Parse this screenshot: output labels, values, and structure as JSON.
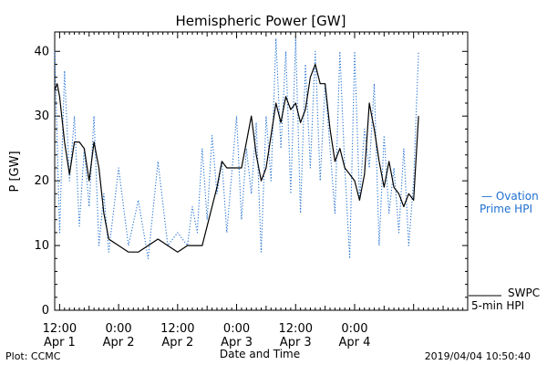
{
  "chart_data": {
    "type": "line",
    "title": "Hemispheric Power [GW]",
    "xlabel": "Date and Time",
    "ylabel": "P [GW]",
    "ylim": [
      0,
      43
    ],
    "xlim": [
      "2019-04-01 11:00",
      "2019-04-04 23:00"
    ],
    "grid": false,
    "legend_placement": "right",
    "y_ticks": [
      0,
      10,
      20,
      30,
      40
    ],
    "x_ticks": [
      {
        "time": "2019-04-01 12:00",
        "line1": "12:00",
        "line2": "Apr 1"
      },
      {
        "time": "2019-04-02 00:00",
        "line1": "0:00",
        "line2": "Apr 2"
      },
      {
        "time": "2019-04-02 12:00",
        "line1": "12:00",
        "line2": "Apr 2"
      },
      {
        "time": "2019-04-03 00:00",
        "line1": "0:00",
        "line2": "Apr 3"
      },
      {
        "time": "2019-04-03 12:00",
        "line1": "12:00",
        "line2": "Apr 3"
      },
      {
        "time": "2019-04-04 00:00",
        "line1": "0:00",
        "line2": "Apr 4"
      }
    ],
    "series": [
      {
        "name": "SWPC 5-min HPI",
        "color": "#000000",
        "style": "solid",
        "x": [
          "2019-04-01 11:00",
          "2019-04-01 11:30",
          "2019-04-01 12:00",
          "2019-04-01 13:00",
          "2019-04-01 14:00",
          "2019-04-01 15:00",
          "2019-04-01 16:00",
          "2019-04-01 17:00",
          "2019-04-01 18:00",
          "2019-04-01 19:00",
          "2019-04-01 20:00",
          "2019-04-01 21:00",
          "2019-04-01 22:00",
          "2019-04-02 00:00",
          "2019-04-02 02:00",
          "2019-04-02 04:00",
          "2019-04-02 06:00",
          "2019-04-02 08:00",
          "2019-04-02 10:00",
          "2019-04-02 12:00",
          "2019-04-02 14:00",
          "2019-04-02 15:00",
          "2019-04-02 16:00",
          "2019-04-02 17:00",
          "2019-04-02 18:00",
          "2019-04-02 19:00",
          "2019-04-02 20:00",
          "2019-04-02 21:00",
          "2019-04-02 22:00",
          "2019-04-03 00:00",
          "2019-04-03 01:00",
          "2019-04-03 02:00",
          "2019-04-03 03:00",
          "2019-04-03 04:00",
          "2019-04-03 05:00",
          "2019-04-03 06:00",
          "2019-04-03 07:00",
          "2019-04-03 08:00",
          "2019-04-03 09:00",
          "2019-04-03 10:00",
          "2019-04-03 11:00",
          "2019-04-03 12:00",
          "2019-04-03 13:00",
          "2019-04-03 14:00",
          "2019-04-03 15:00",
          "2019-04-03 16:00",
          "2019-04-03 17:00",
          "2019-04-03 18:00",
          "2019-04-03 19:00",
          "2019-04-03 20:00",
          "2019-04-03 21:00",
          "2019-04-03 22:00",
          "2019-04-03 23:00",
          "2019-04-04 00:00",
          "2019-04-04 01:00",
          "2019-04-04 02:00",
          "2019-04-04 03:00",
          "2019-04-04 04:00",
          "2019-04-04 05:00",
          "2019-04-04 06:00",
          "2019-04-04 07:00",
          "2019-04-04 08:00",
          "2019-04-04 09:00",
          "2019-04-04 10:00",
          "2019-04-04 11:00",
          "2019-04-04 12:00",
          "2019-04-04 13:00"
        ],
        "y": [
          34,
          35,
          33,
          26,
          21,
          26,
          26,
          25,
          20,
          26,
          22,
          15,
          11,
          10,
          9,
          9,
          10,
          11,
          10,
          9,
          10,
          10,
          10,
          10,
          13,
          16,
          19,
          23,
          22,
          22,
          22,
          26,
          30,
          24,
          20,
          22,
          27,
          32,
          29,
          33,
          31,
          32,
          29,
          31,
          36,
          38,
          35,
          35,
          28,
          23,
          25,
          22,
          21,
          20,
          17,
          21,
          32,
          28,
          23,
          19,
          23,
          19,
          18,
          16,
          18,
          17,
          30
        ]
      },
      {
        "name": "Ovation Prime HPI",
        "color": "#1f6fd1",
        "style": "dotted",
        "x": [
          "2019-04-01 11:00",
          "2019-04-01 12:00",
          "2019-04-01 13:00",
          "2019-04-01 14:00",
          "2019-04-01 15:00",
          "2019-04-01 16:00",
          "2019-04-01 17:00",
          "2019-04-01 18:00",
          "2019-04-01 19:00",
          "2019-04-01 20:00",
          "2019-04-01 21:00",
          "2019-04-01 22:00",
          "2019-04-02 00:00",
          "2019-04-02 02:00",
          "2019-04-02 04:00",
          "2019-04-02 06:00",
          "2019-04-02 08:00",
          "2019-04-02 10:00",
          "2019-04-02 12:00",
          "2019-04-02 14:00",
          "2019-04-02 15:00",
          "2019-04-02 16:00",
          "2019-04-02 17:00",
          "2019-04-02 18:00",
          "2019-04-02 19:00",
          "2019-04-02 20:00",
          "2019-04-02 21:00",
          "2019-04-02 22:00",
          "2019-04-03 00:00",
          "2019-04-03 01:00",
          "2019-04-03 02:00",
          "2019-04-03 03:00",
          "2019-04-03 04:00",
          "2019-04-03 05:00",
          "2019-04-03 06:00",
          "2019-04-03 07:00",
          "2019-04-03 08:00",
          "2019-04-03 09:00",
          "2019-04-03 10:00",
          "2019-04-03 11:00",
          "2019-04-03 12:00",
          "2019-04-03 13:00",
          "2019-04-03 14:00",
          "2019-04-03 15:00",
          "2019-04-03 16:00",
          "2019-04-03 17:00",
          "2019-04-03 18:00",
          "2019-04-03 19:00",
          "2019-04-03 20:00",
          "2019-04-03 21:00",
          "2019-04-03 22:00",
          "2019-04-03 23:00",
          "2019-04-04 00:00",
          "2019-04-04 01:00",
          "2019-04-04 02:00",
          "2019-04-04 03:00",
          "2019-04-04 04:00",
          "2019-04-04 05:00",
          "2019-04-04 06:00",
          "2019-04-04 07:00",
          "2019-04-04 08:00",
          "2019-04-04 09:00",
          "2019-04-04 10:00",
          "2019-04-04 11:00",
          "2019-04-04 12:00",
          "2019-04-04 13:00"
        ],
        "y": [
          40,
          12,
          37,
          20,
          30,
          13,
          25,
          16,
          30,
          10,
          18,
          9,
          22,
          10,
          17,
          8,
          23,
          10,
          12,
          10,
          16,
          12,
          25,
          14,
          27,
          18,
          23,
          12,
          30,
          14,
          25,
          18,
          29,
          9,
          30,
          20,
          42,
          25,
          40,
          18,
          42,
          15,
          38,
          22,
          40,
          20,
          35,
          25,
          15,
          40,
          22,
          8,
          40,
          17,
          28,
          22,
          35,
          10,
          27,
          15,
          22,
          12,
          25,
          10,
          20,
          40
        ]
      }
    ]
  },
  "legend": {
    "ovation": {
      "marker": "— Ovation",
      "line2": "Prime HPI"
    },
    "swpc": {
      "line1": "SWPC",
      "line2": "5-min HPI"
    }
  },
  "footer": {
    "left": "Plot: CCMC",
    "timestamp": "2019/04/04 10:50:40"
  },
  "colors": {
    "axis": "#000000",
    "ovation": "#1f6fd1",
    "swpc": "#000000"
  }
}
